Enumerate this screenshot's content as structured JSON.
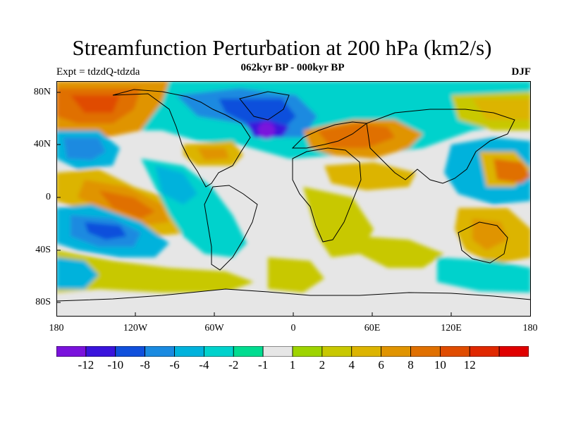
{
  "title": "Streamfunction Perturbation at 200 hPa (km2/s)",
  "subtitle": "062kyr BP - 000kyr BP",
  "left_label": "Expt = tdzdQ-tdzda",
  "right_label": "DJF",
  "lat_ticks": [
    "80N",
    "40N",
    "0",
    "40S",
    "80S"
  ],
  "lon_ticks": [
    "180",
    "120W",
    "60W",
    "0",
    "60E",
    "120E",
    "180"
  ],
  "colorbar": {
    "colors": [
      "#7a12dc",
      "#3a14dc",
      "#1050dc",
      "#1a8ae0",
      "#00b2dc",
      "#00d2cc",
      "#00dc90",
      "#e6e6e6",
      "#9ed400",
      "#c8c800",
      "#dcb400",
      "#e09400",
      "#e07000",
      "#e04c00",
      "#e02800",
      "#e00000"
    ],
    "labels": [
      "-12",
      "-10",
      "-8",
      "-6",
      "-4",
      "-2",
      "-1",
      "1",
      "2",
      "4",
      "6",
      "8",
      "10",
      "12"
    ]
  },
  "field_anomalies": [
    {
      "region": "Siberia-North Atlantic high latitudes (-12)",
      "value": -12
    },
    {
      "region": "Arctic Canada / Greenland",
      "value": -8
    },
    {
      "region": "Eurasia mid-latitudes",
      "value": 10
    },
    {
      "region": "North Pacific high latitudes",
      "value": 11
    },
    {
      "region": "Central North Pacific",
      "value": -7
    },
    {
      "region": "Southeast Pacific",
      "value": -8
    },
    {
      "region": "Tropical Pacific near 150W",
      "value": 10
    },
    {
      "region": "Eastern Australia",
      "value": 6
    },
    {
      "region": "Southern Ocean",
      "value": -5
    }
  ]
}
